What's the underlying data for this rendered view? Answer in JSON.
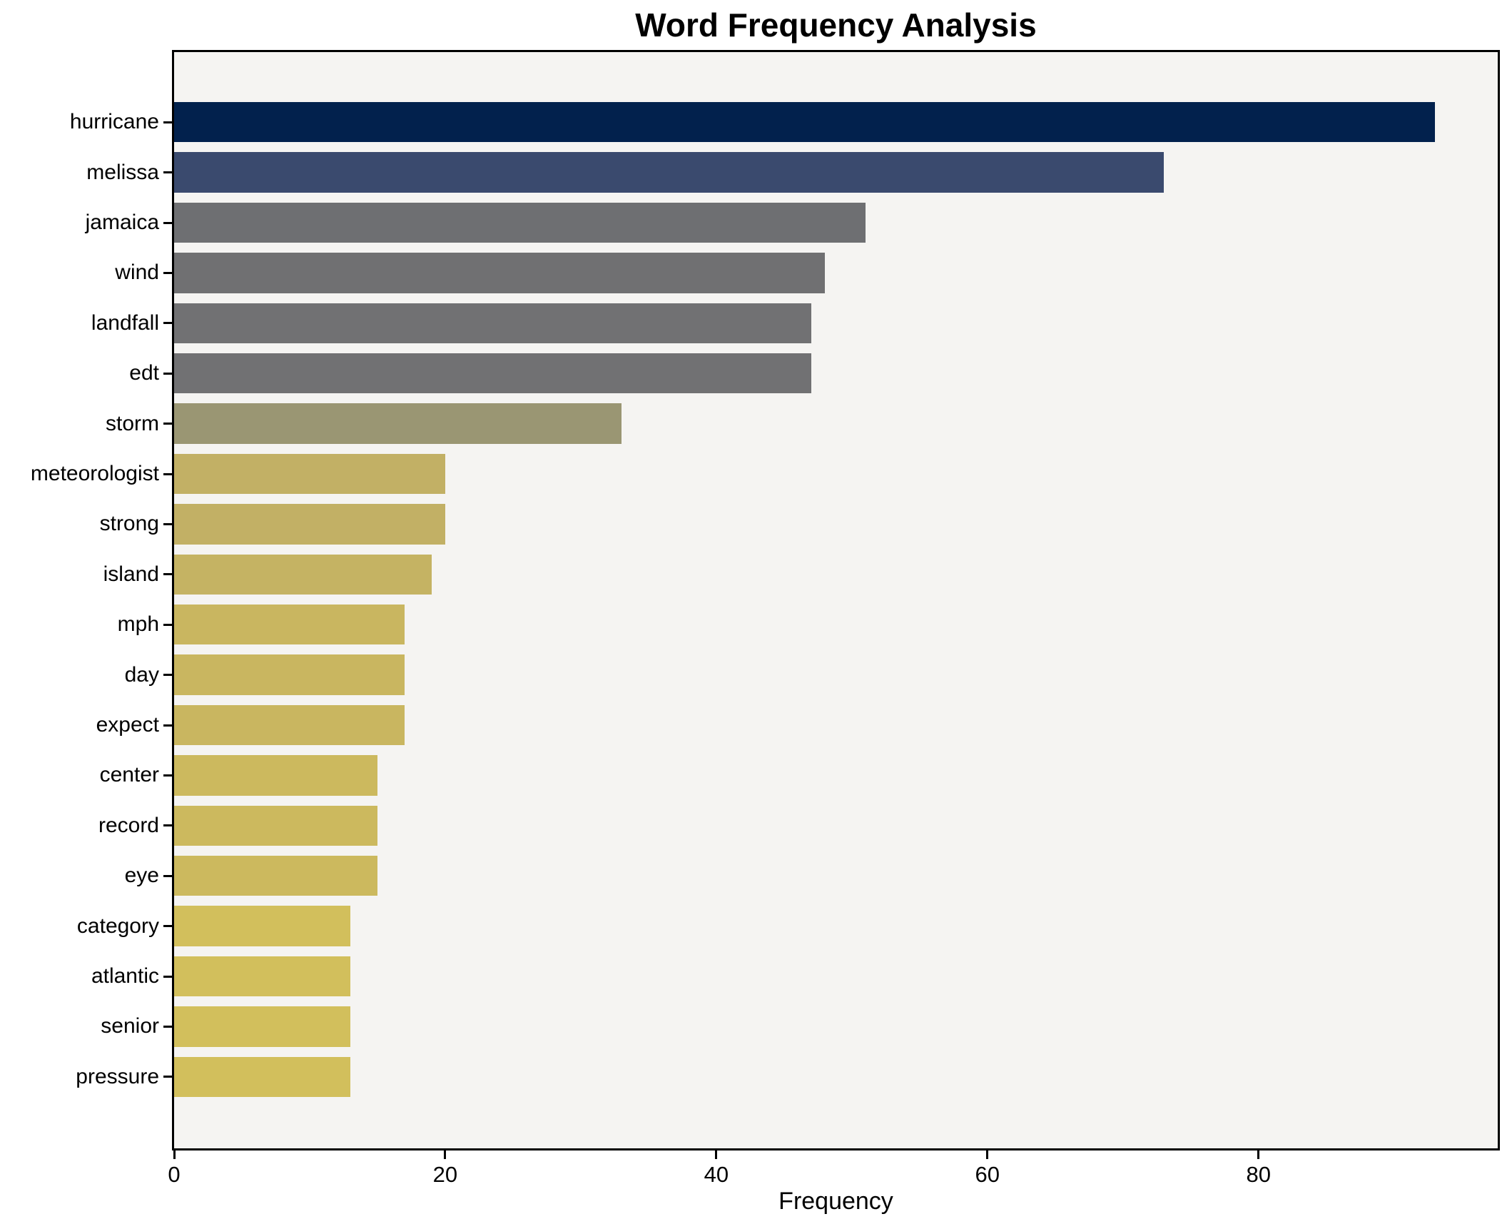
{
  "title": "Word Frequency Analysis",
  "colors": {
    "outer_background": "#ffffff",
    "plot_background": "#f5f4f2",
    "spine": "#000000",
    "text": "#000000"
  },
  "chart_data": {
    "type": "bar",
    "orientation": "horizontal",
    "title": "Word Frequency Analysis",
    "xlabel": "Frequency",
    "ylabel": "",
    "grid": false,
    "legend": null,
    "sort": "descending",
    "xlim": [
      0,
      97.65
    ],
    "x_ticks": [
      0,
      20,
      40,
      60,
      80
    ],
    "x_tick_labels": [
      "0",
      "20",
      "40",
      "60",
      "80"
    ],
    "categories": [
      "hurricane",
      "melissa",
      "jamaica",
      "wind",
      "landfall",
      "edt",
      "storm",
      "meteorologist",
      "strong",
      "island",
      "mph",
      "day",
      "expect",
      "center",
      "record",
      "eye",
      "category",
      "atlantic",
      "senior",
      "pressure"
    ],
    "values": [
      93,
      73,
      51,
      48,
      47,
      47,
      33,
      20,
      20,
      19,
      17,
      17,
      17,
      15,
      15,
      15,
      13,
      13,
      13,
      13
    ],
    "bar_colors": [
      "#02214d",
      "#3a4a6e",
      "#6e6f72",
      "#707072",
      "#717173",
      "#717173",
      "#9a9673",
      "#c2b065",
      "#c2b065",
      "#c5b363",
      "#c9b660",
      "#c9b660",
      "#c9b660",
      "#ccb95e",
      "#ccb95e",
      "#ccb95e",
      "#d2bf5c",
      "#d2bf5c",
      "#d2bf5c",
      "#d2bf5c"
    ],
    "colormap": "cividis-reversed-by-value"
  }
}
